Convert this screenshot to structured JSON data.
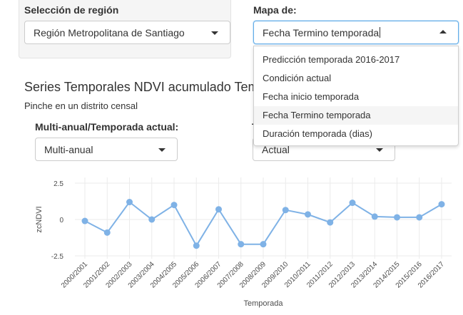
{
  "region": {
    "label": "Selección de región",
    "selected": "Región Metropolitana de Santiago"
  },
  "map": {
    "label": "Mapa de:",
    "selected": "Fecha Termino temporada",
    "options": [
      "Predicción temporada 2016-2017",
      "Condición actual",
      "Fecha inicio temporada",
      "Fecha Termino temporada",
      "Duración temporada (dias)"
    ],
    "active_index": 3
  },
  "section": {
    "title": "Series Temporales NDVI acumulado Tempo",
    "subtitle": "Pinche en un distrito censal"
  },
  "mode": {
    "label": "Multi-anual/Temporada actual:",
    "selected": "Multi-anual"
  },
  "second_select": {
    "label_fragment": "T",
    "selected": "Actual"
  },
  "colors": {
    "series": "#7fb2e6",
    "grid": "#ebebeb"
  },
  "chart_data": {
    "type": "line",
    "x": [
      "2000/2001",
      "2001/2002",
      "2002/2003",
      "2003/2004",
      "2004/2005",
      "2005/2006",
      "2006/2007",
      "2007/2008",
      "2008/2009",
      "2009/2010",
      "2010/2011",
      "2011/2012",
      "2012/2013",
      "2013/2014",
      "2014/2015",
      "2015/2016",
      "2016/2017"
    ],
    "values": [
      -0.1,
      -0.9,
      1.2,
      0.0,
      1.0,
      -1.8,
      0.7,
      -1.7,
      -1.7,
      0.65,
      0.35,
      -0.2,
      1.15,
      0.2,
      0.15,
      0.15,
      1.05
    ],
    "xlabel": "Temporada",
    "ylabel": "zcNDVI",
    "yticks": [
      2.5,
      0,
      -2.5
    ],
    "ylim": [
      -2.5,
      2.5
    ]
  }
}
